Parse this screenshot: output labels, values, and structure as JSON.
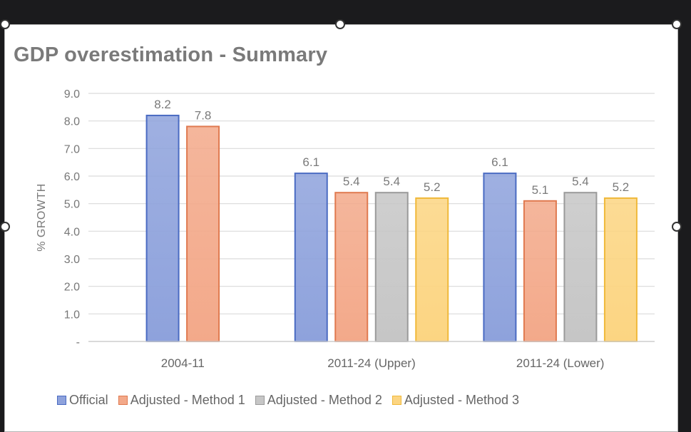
{
  "chart_data": {
    "type": "bar",
    "title": "GDP overestimation - Summary",
    "ylabel": "% GROWTH",
    "xlabel": "",
    "ylim": [
      0,
      9
    ],
    "yticks": [
      "-",
      "1.0",
      "2.0",
      "3.0",
      "4.0",
      "5.0",
      "6.0",
      "7.0",
      "8.0",
      "9.0"
    ],
    "categories": [
      "2004-11",
      "2011-24 (Upper)",
      "2011-24 (Lower)"
    ],
    "series": [
      {
        "name": "Official",
        "values": [
          8.2,
          6.1,
          6.1
        ],
        "labels": [
          "8.2",
          "6.1",
          "6.1"
        ],
        "color": "#8ea2dc",
        "border": "#4a6bc2"
      },
      {
        "name": "Adjusted - Method 1",
        "values": [
          7.8,
          5.4,
          5.1
        ],
        "labels": [
          "7.8",
          "5.4",
          "5.1"
        ],
        "color": "#f3a98a",
        "border": "#e07a50"
      },
      {
        "name": "Adjusted - Method 2",
        "values": [
          null,
          5.4,
          5.4
        ],
        "labels": [
          "",
          "5.4",
          "5.4"
        ],
        "color": "#c6c6c6",
        "border": "#9a9a9a"
      },
      {
        "name": "Adjusted - Method 3",
        "values": [
          null,
          5.2,
          5.2
        ],
        "labels": [
          "",
          "5.2",
          "5.2"
        ],
        "color": "#fcd582",
        "border": "#f0b93a"
      }
    ],
    "grid": true,
    "legend": "bottom"
  }
}
